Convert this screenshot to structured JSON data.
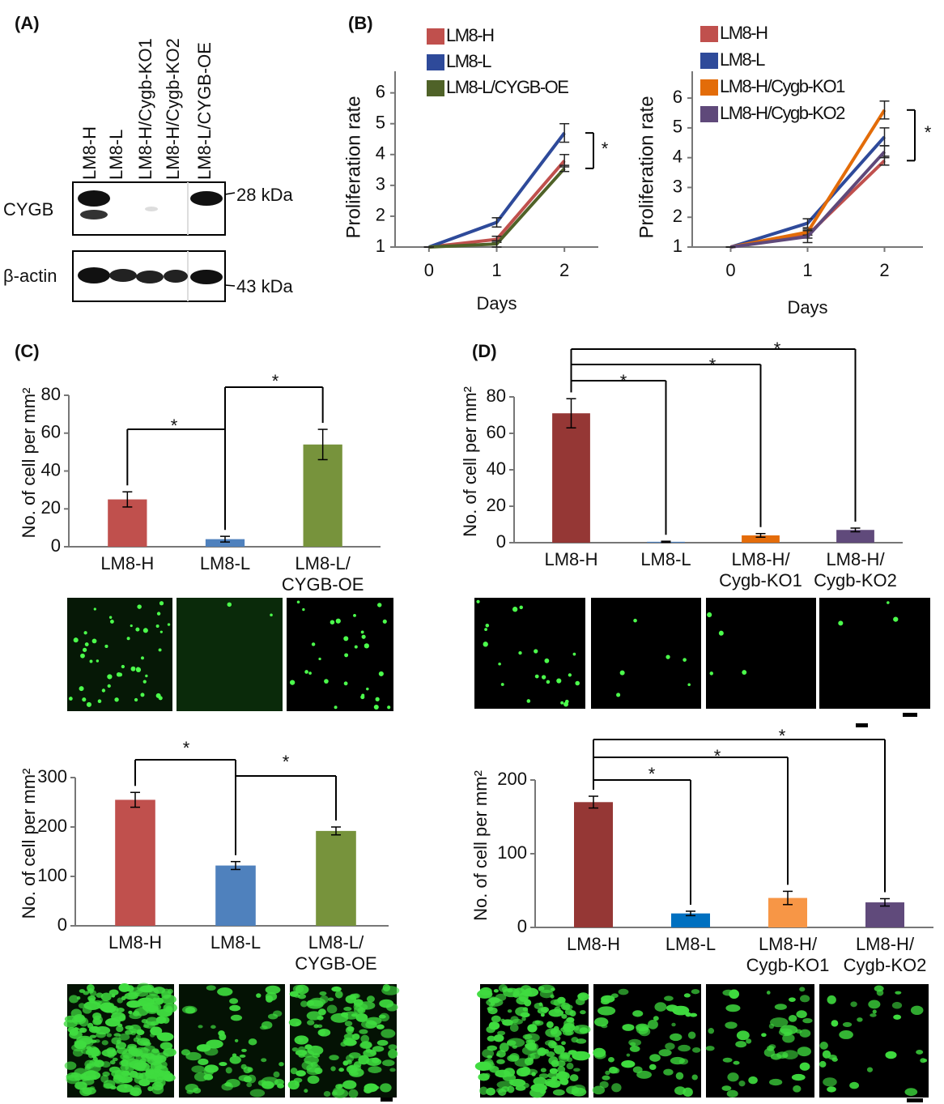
{
  "panel_labels": [
    "(A)",
    "(B)",
    "(C)",
    "(D)"
  ],
  "blot": {
    "lanes": [
      "LM8-H",
      "LM8-L",
      "LM8-H/Cygb-KO1",
      "LM8-H/Cygb-KO2",
      "LM8-L/CYGB-OE"
    ],
    "proteins": [
      "CYGB",
      "β-actin"
    ],
    "markers": [
      "28 kDa",
      "43 kDa"
    ]
  },
  "chart_data": [
    {
      "type": "line",
      "xlabel": "Days",
      "ylabel": "Proliferation rate",
      "x": [
        0,
        1,
        2
      ],
      "xlim": [
        -0.5,
        2.5
      ],
      "xticks": [
        0,
        1,
        2
      ],
      "ylim": [
        1,
        6.7
      ],
      "yticks": [
        1,
        2,
        3,
        4,
        5,
        6
      ],
      "series": [
        {
          "name": "LM8-H",
          "color": "#c0504d",
          "values": [
            1,
            1.25,
            3.8
          ],
          "errors": [
            0,
            0.1,
            0.2
          ]
        },
        {
          "name": "LM8-L",
          "color": "#2e4a9a",
          "values": [
            1,
            1.8,
            4.7
          ],
          "errors": [
            0,
            0.15,
            0.3
          ]
        },
        {
          "name": "LM8-L/CYGB-OE",
          "color": "#4f6228",
          "values": [
            1,
            1.1,
            3.55
          ],
          "errors": [
            0,
            0.1,
            0.1
          ]
        }
      ],
      "annotations": [
        "*"
      ]
    },
    {
      "type": "line",
      "xlabel": "Days",
      "ylabel": "Proliferation rate",
      "x": [
        0,
        1,
        2
      ],
      "xlim": [
        -0.5,
        2.5
      ],
      "xticks": [
        0,
        1,
        2
      ],
      "ylim": [
        1,
        6.9
      ],
      "yticks": [
        1,
        2,
        3,
        4,
        5,
        6
      ],
      "series": [
        {
          "name": "LM8-H",
          "color": "#c0504d",
          "values": [
            1,
            1.4,
            3.9
          ],
          "errors": [
            0,
            0.1,
            0.15
          ]
        },
        {
          "name": "LM8-L",
          "color": "#2e4a9a",
          "values": [
            1,
            1.8,
            4.7
          ],
          "errors": [
            0,
            0.15,
            0.3
          ]
        },
        {
          "name": "LM8-H/Cygb-KO1",
          "color": "#e36c09",
          "values": [
            1,
            1.5,
            5.6
          ],
          "errors": [
            0,
            0.1,
            0.3
          ]
        },
        {
          "name": "LM8-H/Cygb-KO2",
          "color": "#5f497a",
          "values": [
            1,
            1.35,
            4.2
          ],
          "errors": [
            0,
            0.2,
            0.2
          ]
        }
      ],
      "annotations": [
        "*"
      ]
    },
    {
      "type": "bar",
      "ylabel": "No. of cell per mm²",
      "categories": [
        [
          "LM8-H"
        ],
        [
          "LM8-L"
        ],
        [
          "LM8-L/",
          "CYGB-OE"
        ]
      ],
      "values": [
        25,
        4,
        54
      ],
      "errors": [
        4,
        1.5,
        8
      ],
      "colors": [
        "#c0504d",
        "#4f81bd",
        "#77933c"
      ],
      "ylim": [
        0,
        80
      ],
      "yticks": [
        0,
        20,
        40,
        60,
        80
      ],
      "annotations": [
        "*",
        "*"
      ]
    },
    {
      "type": "bar",
      "ylabel": "No. of cell per mm²",
      "categories": [
        [
          "LM8-H"
        ],
        [
          "LM8-L"
        ],
        [
          "LM8-L/",
          "CYGB-OE"
        ]
      ],
      "values": [
        255,
        122,
        192
      ],
      "errors": [
        15,
        8,
        8
      ],
      "colors": [
        "#c0504d",
        "#4f81bd",
        "#77933c"
      ],
      "ylim": [
        0,
        300
      ],
      "yticks": [
        0,
        100,
        200,
        300
      ],
      "annotations": [
        "*",
        "*"
      ]
    },
    {
      "type": "bar",
      "ylabel": "No. of cell per mm²",
      "categories": [
        [
          "LM8-H"
        ],
        [
          "LM8-L"
        ],
        [
          "LM8-H/",
          "Cygb-KO1"
        ],
        [
          "LM8-H/",
          "Cygb-KO2"
        ]
      ],
      "values": [
        71,
        0.5,
        4,
        7
      ],
      "errors": [
        8,
        0.3,
        1,
        1
      ],
      "colors": [
        "#953735",
        "#4f81bd",
        "#e46c0a",
        "#604a7b"
      ],
      "ylim": [
        0,
        80
      ],
      "yticks": [
        0,
        20,
        40,
        60,
        80
      ],
      "annotations": [
        "*",
        "*",
        "*"
      ]
    },
    {
      "type": "bar",
      "ylabel": "No. of cell per mm²",
      "categories": [
        [
          "LM8-H"
        ],
        [
          "LM8-L"
        ],
        [
          "LM8-H/",
          "Cygb-KO1"
        ],
        [
          "LM8-H/",
          "Cygb-KO2"
        ]
      ],
      "values": [
        170,
        19,
        40,
        34
      ],
      "errors": [
        8,
        3,
        9,
        5
      ],
      "colors": [
        "#953735",
        "#0070c0",
        "#f79646",
        "#604a7b"
      ],
      "ylim": [
        0,
        200
      ],
      "yticks": [
        0,
        100,
        200
      ],
      "annotations": [
        "*",
        "*",
        "*"
      ]
    }
  ]
}
